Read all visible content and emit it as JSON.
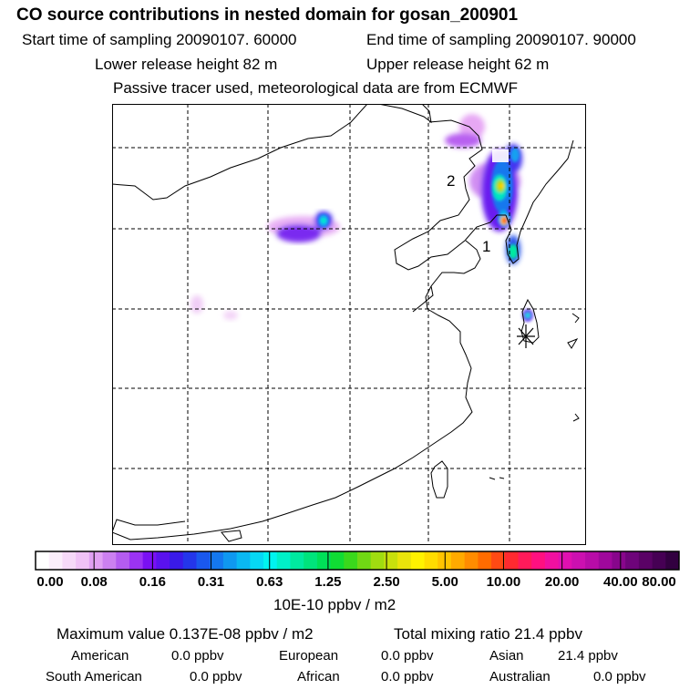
{
  "header": {
    "title": "CO  source contributions in nested domain for gosan_200901",
    "start_time": "Start time of sampling 20090107. 60000",
    "end_time": "End time of sampling 20090107. 90000",
    "lower_release": "Lower release height   82 m",
    "upper_release": "Upper release height   62 m",
    "tracer_note": "Passive tracer used, meteorological data are from ECMWF"
  },
  "map": {
    "labels": [
      "1",
      "2"
    ],
    "receptor_icon": "star-marker-icon"
  },
  "colorbar": {
    "ticks": [
      "0.00",
      "0.08",
      "0.16",
      "0.31",
      "0.63",
      "1.25",
      "2.50",
      "5.00",
      "10.00",
      "20.00",
      "40.00",
      "80.00"
    ],
    "units": "10E-10 ppbv / m2",
    "colors": [
      "#ffffff",
      "#fbeefb",
      "#f6d9f8",
      "#f0c2f6",
      "#e0a0f3",
      "#cc80f0",
      "#b45cf0",
      "#9b33f3",
      "#7a10f3",
      "#5a12ee",
      "#3a1ae8",
      "#2436ea",
      "#1a58ee",
      "#1478ef",
      "#0f98f0",
      "#0ab8f2",
      "#06d8f4",
      "#00f4f0",
      "#00f0c8",
      "#00eaa0",
      "#00e47c",
      "#00e058",
      "#10dc34",
      "#3ad81c",
      "#70d814",
      "#a0dc10",
      "#c8e00c",
      "#eae40a",
      "#fff200",
      "#ffdc00",
      "#ffc400",
      "#ffaa00",
      "#ff8c00",
      "#ff6c00",
      "#ff4a14",
      "#ff2a30",
      "#ff1a5a",
      "#ff1080",
      "#f010a0",
      "#e010b0",
      "#cc10b0",
      "#b80ca8",
      "#a0089c",
      "#88068c",
      "#6e047a",
      "#5a0266",
      "#460054",
      "#320040"
    ]
  },
  "summary": {
    "max_value": "Maximum value  0.137E-08 ppbv / m2",
    "total_mixing": "Total mixing ratio       21.4 ppbv",
    "american_label": "American",
    "american_value": "0.0 ppbv",
    "european_label": "European",
    "european_value": "0.0 ppbv",
    "asian_label": "Asian",
    "asian_value": "21.4 ppbv",
    "south_american_label": "South American",
    "south_american_value": "0.0 ppbv",
    "african_label": "African",
    "african_value": "0.0 ppbv",
    "australian_label": "Australian",
    "australian_value": "0.0 ppbv"
  }
}
